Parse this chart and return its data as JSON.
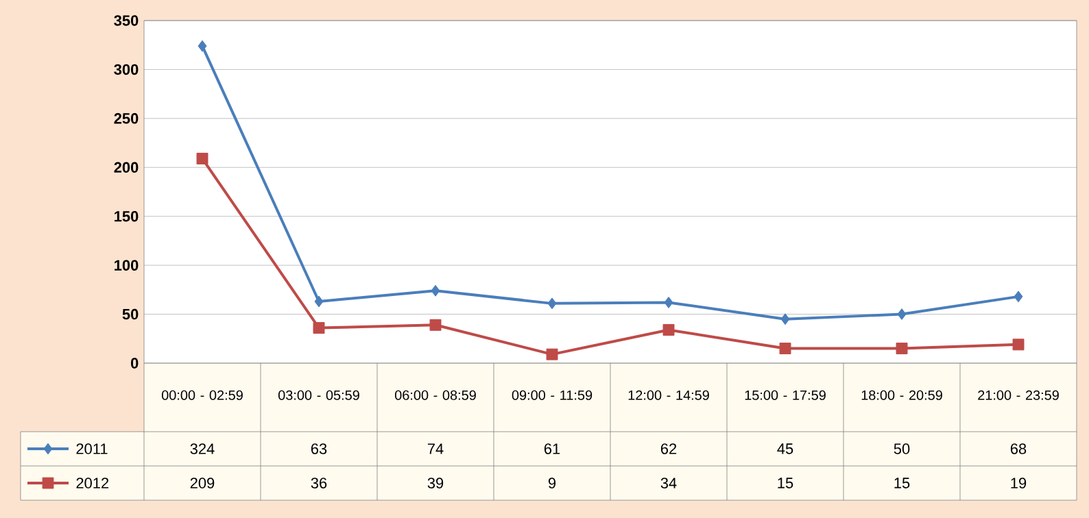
{
  "chart_data": {
    "type": "line",
    "categories": [
      "00:00 - 02:59",
      "03:00 - 05:59",
      "06:00 - 08:59",
      "09:00 - 11:59",
      "12:00 - 14:59",
      "15:00 - 17:59",
      "18:00 - 20:59",
      "21:00 - 23:59"
    ],
    "series": [
      {
        "name": "2011",
        "color": "#4a7ebb",
        "marker": "diamond",
        "values": [
          324,
          63,
          74,
          61,
          62,
          45,
          50,
          68
        ]
      },
      {
        "name": "2012",
        "color": "#be4b48",
        "marker": "square",
        "values": [
          209,
          36,
          39,
          9,
          34,
          15,
          15,
          19
        ]
      }
    ],
    "ylim": [
      0,
      350
    ],
    "yticks": [
      0,
      50,
      100,
      150,
      200,
      250,
      300,
      350
    ],
    "grid": "y",
    "legend": "bottom",
    "data_labels": true
  }
}
